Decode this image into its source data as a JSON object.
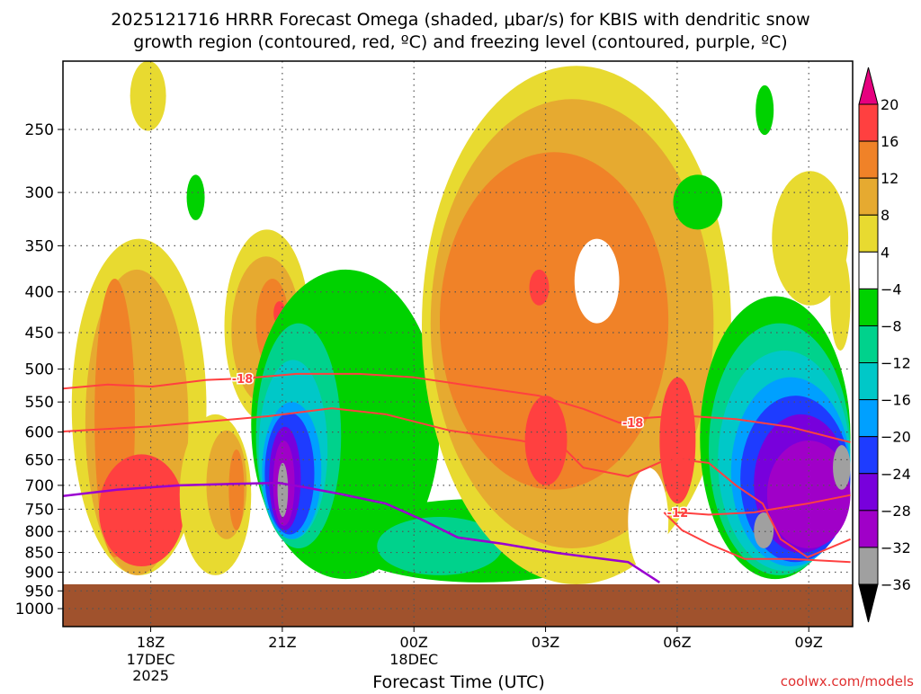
{
  "chart_data": {
    "type": "contour-filled time-height section",
    "title": [
      "2025121716 HRRR Forecast Omega (shaded, μbar/s) for KBIS with dendritic snow",
      "growth region (contoured, red, ºC) and freezing level (contoured, purple, ºC)"
    ],
    "xlabel": "Forecast Time (UTC)",
    "credit": "coolwx.com/models",
    "xlim_hours": [
      0,
      18
    ],
    "ylim_hpa": [
      1053,
      205
    ],
    "x_ticks": [
      {
        "hour": 2,
        "label": "18Z",
        "sub": [
          "17DEC",
          "2025"
        ]
      },
      {
        "hour": 5,
        "label": "21Z",
        "sub": []
      },
      {
        "hour": 8,
        "label": "00Z",
        "sub": [
          "18DEC"
        ]
      },
      {
        "hour": 11,
        "label": "03Z",
        "sub": []
      },
      {
        "hour": 14,
        "label": "06Z",
        "sub": []
      },
      {
        "hour": 17,
        "label": "09Z",
        "sub": []
      }
    ],
    "y_ticks": [
      250,
      300,
      350,
      400,
      450,
      500,
      550,
      600,
      650,
      700,
      750,
      800,
      850,
      900,
      950,
      1000
    ],
    "ground_hpa": 932,
    "colorbar": {
      "levels": [
        20,
        16,
        12,
        8,
        4,
        -4,
        -8,
        -12,
        -16,
        -20,
        -24,
        -28,
        -32,
        -36
      ],
      "colors": [
        "#ff4040",
        "#f08228",
        "#e6aa30",
        "#e8da30",
        "#ffffff",
        "#00d200",
        "#00d28c",
        "#00c8c8",
        "#00a0ff",
        "#1e3cff",
        "#7800dc",
        "#a000c8",
        "#a0a0a0"
      ],
      "over_color": "#e6007f",
      "under_color": "#000000"
    },
    "shade_colors": {
      "4": "#e8da30",
      "8": "#e6aa30",
      "12": "#f08228",
      "16": "#ff4040",
      "0": "#ffffff",
      "-4": "#00d200",
      "-8": "#00d28c",
      "-12": "#00c8c8",
      "-16": "#00a0ff",
      "-20": "#1e3cff",
      "-24": "#7800dc",
      "-28": "#a000c8",
      "-32": "#a0a0a0"
    },
    "regions": [
      [
        4,
        0.2,
        3.27,
        343,
        908
      ],
      [
        8,
        0.51,
        2.86,
        375,
        908
      ],
      [
        12,
        0.72,
        1.64,
        385,
        862
      ],
      [
        16,
        0.82,
        2.76,
        640,
        885
      ],
      [
        4,
        1.53,
        2.35,
        205,
        251
      ],
      [
        4,
        3.68,
        5.62,
        334,
        584
      ],
      [
        8,
        3.84,
        5.42,
        361,
        554
      ],
      [
        12,
        4.4,
        5.15,
        385,
        500
      ],
      [
        16,
        4.8,
        5.07,
        411,
        440
      ],
      [
        4,
        2.66,
        4.29,
        570,
        908
      ],
      [
        8,
        3.27,
        4.19,
        597,
        818
      ],
      [
        12,
        3.78,
        4.13,
        631,
        797
      ],
      [
        -4,
        4.29,
        8.59,
        375,
        918
      ],
      [
        -4,
        6.34,
        12.68,
        728,
        927
      ],
      [
        -8,
        7.16,
        10.02,
        767,
        908
      ],
      [
        -8,
        4.4,
        6.34,
        438,
        840
      ],
      [
        -12,
        4.46,
        6.03,
        487,
        818
      ],
      [
        -16,
        4.54,
        5.89,
        550,
        818
      ],
      [
        -20,
        4.6,
        5.73,
        567,
        807
      ],
      [
        -24,
        4.7,
        5.42,
        591,
        797
      ],
      [
        -28,
        4.79,
        5.28,
        615,
        787
      ],
      [
        -32,
        4.89,
        5.13,
        656,
        767
      ],
      [
        4,
        8.18,
        15.23,
        208,
        932
      ],
      [
        8,
        8.38,
        14.83,
        229,
        840
      ],
      [
        12,
        8.59,
        13.8,
        267,
        709
      ],
      [
        16,
        10.53,
        11.49,
        540,
        700
      ],
      [
        16,
        13.6,
        14.42,
        512,
        738
      ],
      [
        16,
        10.63,
        11.08,
        375,
        416
      ],
      [
        0,
        11.66,
        12.68,
        343,
        438
      ],
      [
        0,
        12.88,
        13.8,
        665,
        908
      ],
      [
        -4,
        13.91,
        15.03,
        285,
        334
      ],
      [
        -4,
        15.79,
        16.2,
        220,
        254
      ],
      [
        4,
        16.16,
        17.9,
        282,
        416
      ],
      [
        -4,
        14.52,
        17.95,
        405,
        918
      ],
      [
        -8,
        14.72,
        17.95,
        438,
        908
      ],
      [
        -12,
        14.93,
        17.95,
        474,
        896
      ],
      [
        -16,
        15.23,
        17.95,
        512,
        885
      ],
      [
        -20,
        15.44,
        17.95,
        540,
        874
      ],
      [
        -24,
        15.75,
        17.9,
        570,
        851
      ],
      [
        -28,
        16.05,
        17.95,
        615,
        840
      ],
      [
        -32,
        15.75,
        16.2,
        757,
        840
      ],
      [
        -32,
        17.55,
        17.95,
        623,
        709
      ],
      [
        4,
        17.49,
        17.95,
        356,
        474
      ],
      [
        -4,
        2.82,
        3.23,
        285,
        325
      ]
    ],
    "dgz_contours": [
      {
        "label": "-18",
        "label_at": [
          4.09,
          514
        ],
        "points": [
          [
            0,
            529
          ],
          [
            1.02,
            523
          ],
          [
            2.04,
            526
          ],
          [
            3.27,
            516
          ],
          [
            4.09,
            514
          ],
          [
            5.32,
            507
          ],
          [
            6.75,
            507
          ],
          [
            7.98,
            512
          ],
          [
            9.41,
            526
          ],
          [
            10.84,
            540
          ],
          [
            11.86,
            561
          ],
          [
            12.68,
            584
          ],
          [
            13.29,
            576
          ],
          [
            14.11,
            572
          ],
          [
            15.34,
            578
          ],
          [
            16.56,
            591
          ],
          [
            17.95,
            618
          ]
        ]
      },
      {
        "label": "-18",
        "label_at": [
          12.99,
          584
        ],
        "points": [
          [
            0,
            599
          ],
          [
            2.04,
            590
          ],
          [
            4.7,
            573
          ],
          [
            6.13,
            560
          ],
          [
            7.36,
            570
          ],
          [
            8.8,
            597
          ],
          [
            10.43,
            615
          ],
          [
            11.45,
            631
          ],
          [
            11.86,
            665
          ],
          [
            12.88,
            682
          ],
          [
            13.8,
            648
          ],
          [
            14.31,
            652
          ],
          [
            14.72,
            656
          ],
          [
            15.34,
            700
          ],
          [
            15.95,
            738
          ],
          [
            16.36,
            818
          ],
          [
            16.97,
            862
          ],
          [
            17.95,
            818
          ]
        ]
      },
      {
        "label": "-12",
        "label_at": [
          14.01,
          757
        ],
        "points": [
          [
            13.7,
            757
          ],
          [
            14.11,
            797
          ],
          [
            14.72,
            829
          ],
          [
            15.54,
            866
          ],
          [
            16.56,
            866
          ],
          [
            17.95,
            874
          ]
        ]
      },
      {
        "label": "",
        "label_at": null,
        "points": [
          [
            14.01,
            757
          ],
          [
            14.72,
            762
          ],
          [
            15.75,
            757
          ],
          [
            16.36,
            747
          ],
          [
            16.97,
            738
          ],
          [
            17.95,
            720
          ]
        ]
      }
    ],
    "freezing_level": {
      "points": [
        [
          0,
          722
        ],
        [
          1.23,
          709
        ],
        [
          2.66,
          700
        ],
        [
          3.89,
          697
        ],
        [
          4.91,
          695
        ],
        [
          5.52,
          704
        ],
        [
          6.34,
          718
        ],
        [
          7.36,
          738
        ],
        [
          8.18,
          773
        ],
        [
          9.0,
          814
        ],
        [
          10.02,
          829
        ],
        [
          11.25,
          851
        ],
        [
          12.88,
          874
        ],
        [
          13.6,
          927
        ]
      ]
    }
  }
}
